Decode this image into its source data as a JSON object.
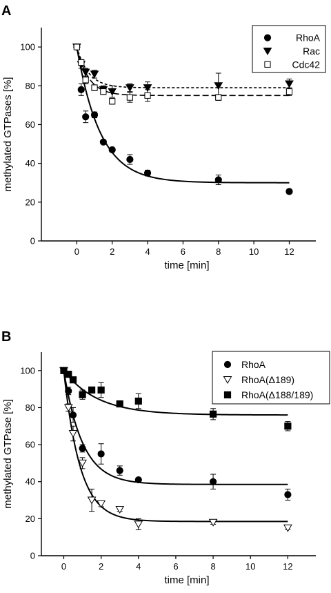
{
  "chart_data": [
    {
      "type": "scatter",
      "panel_label": "A",
      "title": "",
      "xlabel": "time [min]",
      "ylabel": "methylated GTPases [%]",
      "xlim": [
        -2,
        13.5
      ],
      "ylim": [
        0,
        110
      ],
      "x_ticks": [
        0,
        2,
        4,
        6,
        8,
        10,
        12
      ],
      "y_ticks": [
        0,
        20,
        40,
        60,
        80,
        100
      ],
      "grid": false,
      "legend_position": "top-right",
      "series": [
        {
          "name": "RhoA",
          "marker": "filled-circle",
          "x": [
            0,
            0.25,
            0.5,
            1,
            1.5,
            2,
            3,
            4,
            8,
            12
          ],
          "y": [
            100,
            78,
            64,
            65,
            51,
            47,
            42,
            35,
            31.5,
            25.5
          ],
          "err": [
            0,
            3,
            3,
            1.5,
            0.8,
            1,
            2.5,
            1.5,
            2.5,
            1.2
          ],
          "fit": {
            "style": "solid",
            "plateau": 30,
            "amplitude": 70,
            "rate": 0.75
          }
        },
        {
          "name": "Rac",
          "marker": "filled-triangle-down",
          "x": [
            0,
            0.25,
            0.5,
            1,
            1.5,
            2,
            3,
            4,
            8,
            12
          ],
          "y": [
            100,
            91,
            87,
            86,
            78,
            77,
            79,
            79,
            80,
            81
          ],
          "err": [
            0,
            2,
            2,
            2,
            2,
            3,
            2,
            3,
            6.5,
            2.5
          ],
          "fit": {
            "style": "dashed-short",
            "plateau": 79,
            "amplitude": 21,
            "rate": 1.5
          }
        },
        {
          "name": "Cdc42",
          "marker": "open-square",
          "x": [
            0,
            0.25,
            0.5,
            1,
            1.5,
            2,
            3,
            4,
            8,
            12
          ],
          "y": [
            100,
            92,
            83,
            79,
            77,
            72,
            74,
            75,
            74,
            77
          ],
          "err": [
            0,
            1.5,
            2,
            1.5,
            1.5,
            1.5,
            2.5,
            3,
            1.5,
            2
          ],
          "fit": {
            "style": "dashed-long",
            "plateau": 75,
            "amplitude": 25,
            "rate": 1.5
          }
        }
      ]
    },
    {
      "type": "scatter",
      "panel_label": "B",
      "title": "",
      "xlabel": "time [min]",
      "ylabel": "methylated GTPase [%]",
      "xlim": [
        -1.2,
        13.5
      ],
      "ylim": [
        0,
        110
      ],
      "x_ticks": [
        0,
        2,
        4,
        6,
        8,
        10,
        12
      ],
      "y_ticks": [
        0,
        20,
        40,
        60,
        80,
        100
      ],
      "grid": false,
      "legend_position": "top-right",
      "series": [
        {
          "name": "RhoA",
          "marker": "filled-circle",
          "x": [
            0,
            0.25,
            0.5,
            1,
            2,
            3,
            4,
            8,
            12
          ],
          "y": [
            100,
            89,
            76,
            58,
            55,
            46,
            41,
            40,
            33
          ],
          "err": [
            0,
            2,
            4,
            2,
            5.5,
            2.5,
            1,
            4,
            3
          ],
          "fit": {
            "style": "solid",
            "plateau": 38.5,
            "amplitude": 61.5,
            "rate": 1.0
          }
        },
        {
          "name": "RhoA(Δ189)",
          "marker": "open-triangle-down",
          "x": [
            0,
            0.25,
            0.5,
            1,
            1.5,
            2,
            3,
            4,
            8,
            12
          ],
          "y": [
            100,
            80,
            66,
            50,
            30,
            28,
            25,
            17,
            18,
            15
          ],
          "err": [
            0,
            2,
            4,
            3,
            6,
            1.5,
            1,
            3,
            1,
            0.8
          ],
          "fit": {
            "style": "solid",
            "plateau": 18.5,
            "amplitude": 81.5,
            "rate": 1.15
          }
        },
        {
          "name": "RhoA(Δ188/189)",
          "marker": "filled-square",
          "x": [
            0,
            0.25,
            0.5,
            1,
            1.5,
            2,
            3,
            4,
            8,
            12
          ],
          "y": [
            100,
            98,
            95,
            87,
            89.5,
            89.5,
            82,
            83.5,
            76.5,
            70
          ],
          "err": [
            0,
            1,
            1,
            2.5,
            1,
            4,
            1,
            4,
            3,
            2.5
          ],
          "fit": {
            "style": "solid",
            "plateau": 76,
            "amplitude": 24,
            "rate": 0.55
          }
        }
      ]
    }
  ]
}
